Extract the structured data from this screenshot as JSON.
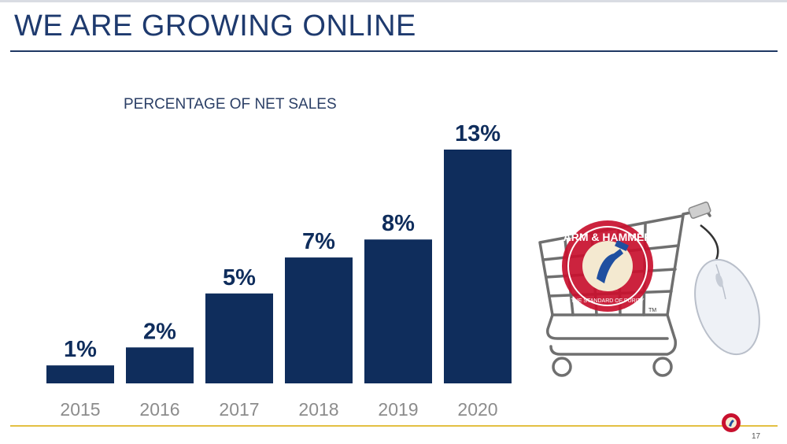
{
  "slide": {
    "title": "WE ARE GROWING ONLINE",
    "page_number": "17"
  },
  "colors": {
    "title": "#1e3a6e",
    "bar": "#0f2d5c",
    "title_rule": "#1f3864",
    "bottom_rule": "#e3c043",
    "category_label": "#8c8c8c",
    "logo_red": "#c8102e"
  },
  "logo": {
    "text": "ARM & HAMMER",
    "ring_text": "THE STANDARD OF PURITY",
    "trademark": "TM"
  },
  "illustration": {
    "icons": [
      "shopping-cart-icon",
      "computer-mouse-icon",
      "arm-and-hammer-seal-icon"
    ]
  },
  "chart_data": {
    "type": "bar",
    "title": "PERCENTAGE OF NET SALES",
    "categories": [
      "2015",
      "2016",
      "2017",
      "2018",
      "2019",
      "2020"
    ],
    "values": [
      1,
      2,
      5,
      7,
      8,
      13
    ],
    "data_labels": [
      "1%",
      "2%",
      "5%",
      "7%",
      "8%",
      "13%"
    ],
    "unit": "%",
    "xlabel": "",
    "ylabel": "",
    "ylim": [
      0,
      13
    ],
    "grid": false,
    "legend": "none"
  }
}
